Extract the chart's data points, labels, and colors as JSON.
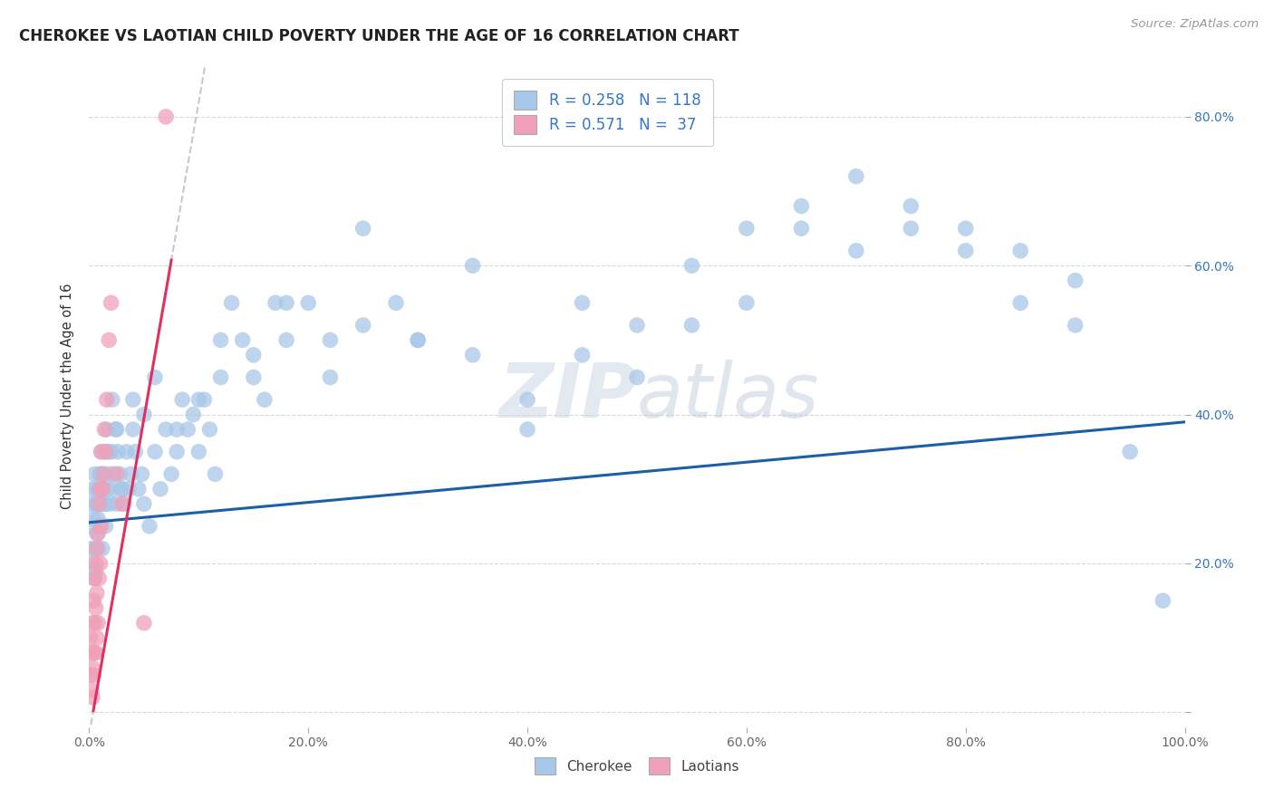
{
  "title": "CHEROKEE VS LAOTIAN CHILD POVERTY UNDER THE AGE OF 16 CORRELATION CHART",
  "source": "Source: ZipAtlas.com",
  "ylabel": "Child Poverty Under the Age of 16",
  "cherokee_R": 0.258,
  "cherokee_N": 118,
  "laotian_R": 0.571,
  "laotian_N": 37,
  "cherokee_color": "#a8c8e8",
  "cherokee_edge_color": "#90b8d8",
  "cherokee_line_color": "#1a5fa8",
  "laotian_color": "#f0a0b8",
  "laotian_edge_color": "#e080a0",
  "laotian_line_color": "#e03060",
  "laotian_dash_color": "#c8c8c8",
  "background_color": "#ffffff",
  "grid_color": "#d8d8d8",
  "watermark_color": "#d0dce8",
  "cherokee_line_intercept": 0.255,
  "cherokee_line_slope": 0.135,
  "laotian_line_intercept": -0.03,
  "laotian_line_slope": 8.5,
  "cherokee_x": [
    0.001,
    0.002,
    0.002,
    0.003,
    0.003,
    0.004,
    0.004,
    0.005,
    0.005,
    0.006,
    0.006,
    0.007,
    0.007,
    0.008,
    0.008,
    0.009,
    0.009,
    0.01,
    0.01,
    0.011,
    0.011,
    0.012,
    0.012,
    0.013,
    0.014,
    0.015,
    0.015,
    0.016,
    0.017,
    0.018,
    0.019,
    0.02,
    0.021,
    0.022,
    0.024,
    0.025,
    0.026,
    0.028,
    0.03,
    0.032,
    0.034,
    0.036,
    0.038,
    0.04,
    0.042,
    0.045,
    0.048,
    0.05,
    0.055,
    0.06,
    0.065,
    0.07,
    0.075,
    0.08,
    0.085,
    0.09,
    0.095,
    0.1,
    0.105,
    0.11,
    0.115,
    0.12,
    0.13,
    0.14,
    0.15,
    0.16,
    0.17,
    0.18,
    0.2,
    0.22,
    0.25,
    0.28,
    0.3,
    0.35,
    0.4,
    0.45,
    0.5,
    0.55,
    0.6,
    0.65,
    0.7,
    0.75,
    0.8,
    0.85,
    0.9,
    0.95,
    0.98,
    0.008,
    0.01,
    0.012,
    0.015,
    0.018,
    0.022,
    0.025,
    0.03,
    0.04,
    0.05,
    0.06,
    0.08,
    0.1,
    0.12,
    0.15,
    0.18,
    0.22,
    0.25,
    0.3,
    0.35,
    0.4,
    0.45,
    0.5,
    0.55,
    0.6,
    0.65,
    0.7,
    0.75,
    0.8,
    0.85,
    0.9
  ],
  "cherokee_y": [
    0.22,
    0.28,
    0.25,
    0.2,
    0.3,
    0.18,
    0.26,
    0.22,
    0.32,
    0.19,
    0.28,
    0.24,
    0.3,
    0.26,
    0.22,
    0.3,
    0.28,
    0.25,
    0.32,
    0.28,
    0.35,
    0.22,
    0.3,
    0.32,
    0.28,
    0.35,
    0.25,
    0.38,
    0.3,
    0.32,
    0.28,
    0.35,
    0.42,
    0.3,
    0.38,
    0.28,
    0.35,
    0.32,
    0.3,
    0.28,
    0.35,
    0.3,
    0.32,
    0.38,
    0.35,
    0.3,
    0.32,
    0.28,
    0.25,
    0.35,
    0.3,
    0.38,
    0.32,
    0.35,
    0.42,
    0.38,
    0.4,
    0.35,
    0.42,
    0.38,
    0.32,
    0.45,
    0.55,
    0.5,
    0.45,
    0.42,
    0.55,
    0.5,
    0.55,
    0.5,
    0.65,
    0.55,
    0.5,
    0.6,
    0.38,
    0.48,
    0.45,
    0.52,
    0.55,
    0.65,
    0.62,
    0.68,
    0.65,
    0.62,
    0.58,
    0.35,
    0.15,
    0.28,
    0.32,
    0.3,
    0.28,
    0.35,
    0.32,
    0.38,
    0.3,
    0.42,
    0.4,
    0.45,
    0.38,
    0.42,
    0.5,
    0.48,
    0.55,
    0.45,
    0.52,
    0.5,
    0.48,
    0.42,
    0.55,
    0.52,
    0.6,
    0.65,
    0.68,
    0.72,
    0.65,
    0.62,
    0.55,
    0.52
  ],
  "laotian_x": [
    0.001,
    0.001,
    0.002,
    0.002,
    0.003,
    0.003,
    0.003,
    0.004,
    0.004,
    0.005,
    0.005,
    0.005,
    0.006,
    0.006,
    0.006,
    0.007,
    0.007,
    0.007,
    0.008,
    0.008,
    0.009,
    0.009,
    0.01,
    0.01,
    0.011,
    0.011,
    0.012,
    0.013,
    0.014,
    0.015,
    0.016,
    0.018,
    0.02,
    0.025,
    0.03,
    0.05,
    0.07
  ],
  "laotian_y": [
    0.05,
    0.1,
    0.03,
    0.08,
    0.02,
    0.06,
    0.12,
    0.05,
    0.15,
    0.08,
    0.12,
    0.18,
    0.08,
    0.14,
    0.2,
    0.1,
    0.16,
    0.22,
    0.12,
    0.24,
    0.18,
    0.28,
    0.2,
    0.3,
    0.25,
    0.35,
    0.3,
    0.32,
    0.38,
    0.35,
    0.42,
    0.5,
    0.55,
    0.32,
    0.28,
    0.12,
    0.8
  ],
  "xlim": [
    0.0,
    1.0
  ],
  "ylim": [
    -0.02,
    0.87
  ],
  "xticks": [
    0.0,
    0.2,
    0.4,
    0.6,
    0.8,
    1.0
  ],
  "xtick_labels": [
    "0.0%",
    "20.0%",
    "40.0%",
    "60.0%",
    "80.0%",
    "100.0%"
  ],
  "ytick_positions": [
    0.0,
    0.2,
    0.4,
    0.6,
    0.8
  ],
  "ytick_labels": [
    "",
    "20.0%",
    "40.0%",
    "60.0%",
    "80.0%"
  ]
}
